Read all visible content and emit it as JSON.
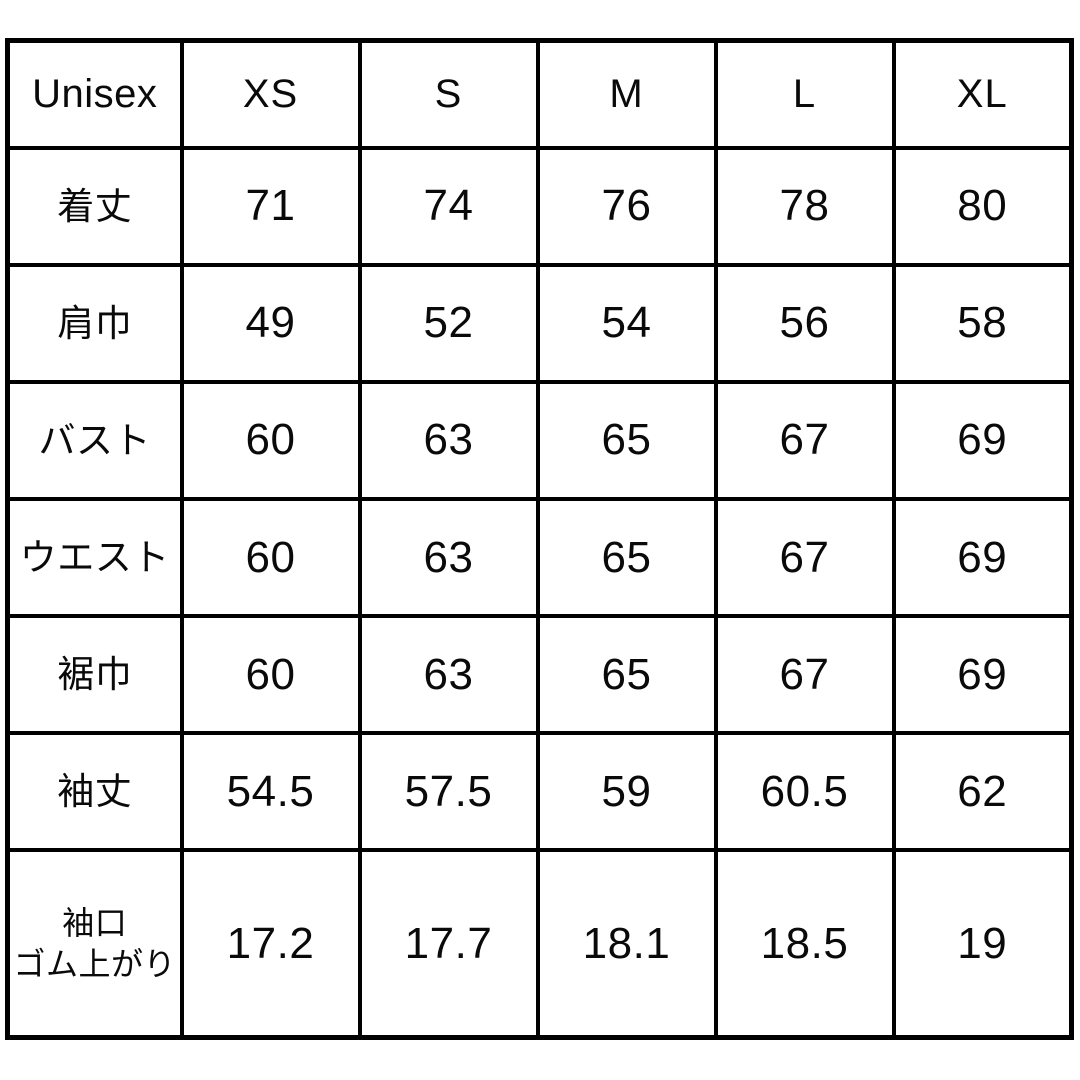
{
  "chart_data": {
    "type": "table",
    "corner_label": "Unisex",
    "columns": [
      "XS",
      "S",
      "M",
      "L",
      "XL"
    ],
    "rows": [
      {
        "label": "着丈",
        "values": [
          "71",
          "74",
          "76",
          "78",
          "80"
        ]
      },
      {
        "label": "肩巾",
        "values": [
          "49",
          "52",
          "54",
          "56",
          "58"
        ]
      },
      {
        "label": "バスト",
        "values": [
          "60",
          "63",
          "65",
          "67",
          "69"
        ]
      },
      {
        "label": "ウエスト",
        "values": [
          "60",
          "63",
          "65",
          "67",
          "69"
        ]
      },
      {
        "label": "裾巾",
        "values": [
          "60",
          "63",
          "65",
          "67",
          "69"
        ]
      },
      {
        "label": "袖丈",
        "values": [
          "54.5",
          "57.5",
          "59",
          "60.5",
          "62"
        ]
      },
      {
        "label": "袖口\nゴム上がり",
        "values": [
          "17.2",
          "17.7",
          "18.1",
          "18.5",
          "19"
        ]
      }
    ],
    "layout": {
      "grid": "on",
      "border_color": "#000000",
      "text_color": "#0a0a0a",
      "background_color": "#ffffff"
    }
  }
}
